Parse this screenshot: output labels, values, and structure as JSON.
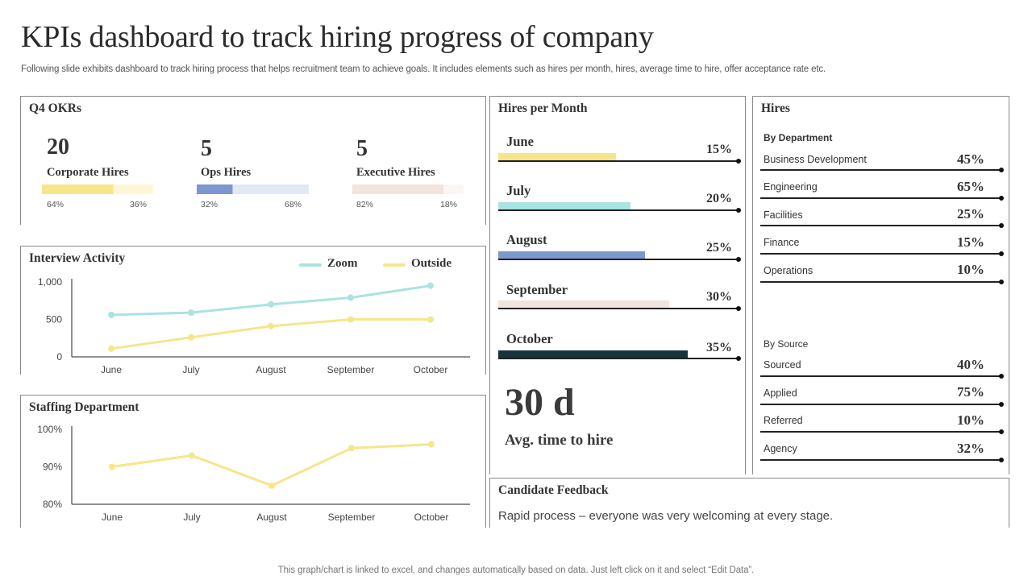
{
  "header": {
    "title": "KPIs dashboard to track hiring progress of company",
    "subtitle": "Following slide exhibits dashboard to track hiring process that helps recruitment team to achieve goals. It includes elements such as hires per month, hires, average time to hire, offer acceptance rate etc."
  },
  "okrs": {
    "title": "Q4 OKRs",
    "items": [
      {
        "value": "20",
        "label": "Corporate Hires",
        "achieved_pct": "64%",
        "remaining_pct": "36%",
        "achieved": 0.64,
        "color": "#f7e58a",
        "light_color": "#fdf7d6"
      },
      {
        "value": "5",
        "label": "Ops Hires",
        "achieved_pct": "32%",
        "remaining_pct": "68%",
        "achieved": 0.32,
        "color": "#7d97cf",
        "light_color": "#e2e8f5"
      },
      {
        "value": "5",
        "label": "Executive Hires",
        "achieved_pct": "82%",
        "remaining_pct": "18%",
        "achieved": 0.82,
        "color": "#f1e5dd",
        "light_color": "#fbf6f3"
      }
    ]
  },
  "interview": {
    "title": "Interview Activity",
    "legend": [
      {
        "name": "Zoom",
        "color": "#a9e3e2"
      },
      {
        "name": "Outside",
        "color": "#f7e58a"
      }
    ]
  },
  "staffing": {
    "title": "Staffing Department"
  },
  "hires_per_month": {
    "title": "Hires per Month",
    "items": [
      {
        "month": "June",
        "pct": "15%",
        "fill": 0.49,
        "color": "#f7e58a"
      },
      {
        "month": "July",
        "pct": "20%",
        "fill": 0.55,
        "color": "#a9e3e2"
      },
      {
        "month": "August",
        "pct": "25%",
        "fill": 0.61,
        "color": "#7d97cf"
      },
      {
        "month": "September",
        "pct": "30%",
        "fill": 0.71,
        "color": "#f1e5dd"
      },
      {
        "month": "October",
        "pct": "35%",
        "fill": 0.79,
        "color": "#17343a"
      }
    ],
    "avg_value": "30 d",
    "avg_label": "Avg. time to hire"
  },
  "hires": {
    "title": "Hires",
    "by_department_label": "By Department",
    "departments": [
      {
        "name": "Business Development",
        "pct": "45%"
      },
      {
        "name": "Engineering",
        "pct": "65%"
      },
      {
        "name": "Facilities",
        "pct": "25%"
      },
      {
        "name": "Finance",
        "pct": "15%"
      },
      {
        "name": "Operations",
        "pct": "10%"
      }
    ],
    "by_source_label": "By Source",
    "sources": [
      {
        "name": "Sourced",
        "pct": "40%"
      },
      {
        "name": "Applied",
        "pct": "75%"
      },
      {
        "name": "Referred",
        "pct": "10%"
      },
      {
        "name": "Agency",
        "pct": "32%"
      }
    ]
  },
  "feedback": {
    "title": "Candidate Feedback",
    "text": "Rapid process – everyone was very welcoming at every stage."
  },
  "footnote": "This graph/chart is linked to excel,  and changes automatically based on data. Just left click on it and select “Edit Data”.",
  "chart_data": [
    {
      "type": "line",
      "title": "Interview Activity",
      "categories": [
        "June",
        "July",
        "August",
        "September",
        "October"
      ],
      "series": [
        {
          "name": "Zoom",
          "values": [
            560,
            590,
            700,
            790,
            950
          ],
          "color": "#a9e3e2"
        },
        {
          "name": "Outside",
          "values": [
            110,
            260,
            410,
            500,
            500
          ],
          "color": "#f7e58a"
        }
      ],
      "y_ticks": [
        "0",
        "500",
        "1,000"
      ],
      "ylim": [
        0,
        1000
      ],
      "legend": "top-right"
    },
    {
      "type": "line",
      "title": "Staffing Department",
      "categories": [
        "June",
        "July",
        "August",
        "September",
        "October"
      ],
      "series": [
        {
          "values": [
            90,
            93,
            85,
            95,
            96
          ],
          "color": "#f7e58a"
        }
      ],
      "y_ticks": [
        "80%",
        "90%",
        "100%"
      ],
      "ylim": [
        80,
        100
      ]
    }
  ]
}
